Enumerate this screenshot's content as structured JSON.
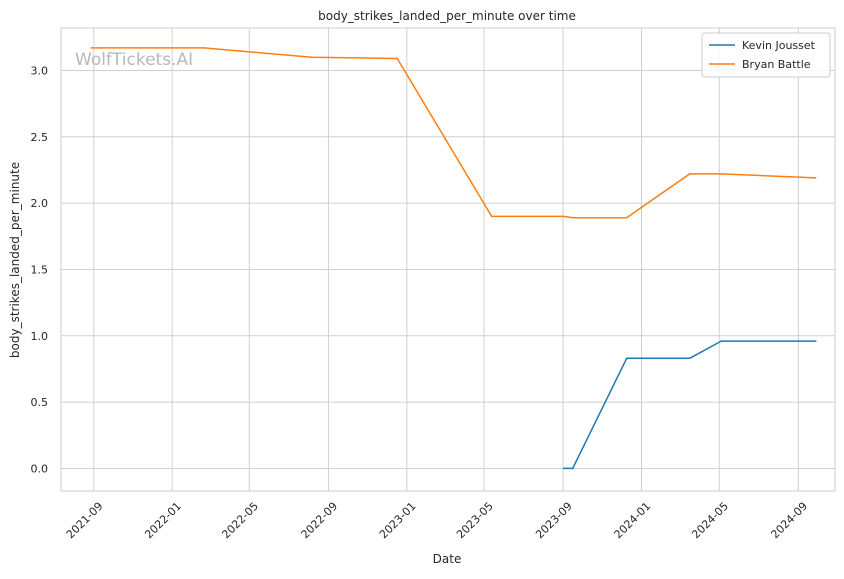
{
  "chart_data": {
    "type": "line",
    "title": "body_strikes_landed_per_minute over time",
    "xlabel": "Date",
    "ylabel": "body_strikes_landed_per_minute",
    "watermark": "WolfTickets.AI",
    "x_range": [
      "2021-07-12",
      "2024-10-28"
    ],
    "ylim": [
      -0.17,
      3.32
    ],
    "x_ticks": [
      {
        "date": "2021-09-01",
        "label": "2021-09"
      },
      {
        "date": "2022-01-01",
        "label": "2022-01"
      },
      {
        "date": "2022-05-01",
        "label": "2022-05"
      },
      {
        "date": "2022-09-01",
        "label": "2022-09"
      },
      {
        "date": "2023-01-01",
        "label": "2023-01"
      },
      {
        "date": "2023-05-01",
        "label": "2023-05"
      },
      {
        "date": "2023-09-01",
        "label": "2023-09"
      },
      {
        "date": "2024-01-01",
        "label": "2024-01"
      },
      {
        "date": "2024-05-01",
        "label": "2024-05"
      },
      {
        "date": "2024-09-01",
        "label": "2024-09"
      }
    ],
    "y_ticks": [
      {
        "value": 0.0,
        "label": "0.0"
      },
      {
        "value": 0.5,
        "label": "0.5"
      },
      {
        "value": 1.0,
        "label": "1.0"
      },
      {
        "value": 1.5,
        "label": "1.5"
      },
      {
        "value": 2.0,
        "label": "2.0"
      },
      {
        "value": 2.5,
        "label": "2.5"
      },
      {
        "value": 3.0,
        "label": "3.0"
      }
    ],
    "grid": true,
    "legend_position": "top-right",
    "series": [
      {
        "name": "Kevin Jousset",
        "color": "#1f77b4",
        "points": [
          {
            "x": "2023-09-02",
            "y": 0.0
          },
          {
            "x": "2023-09-16",
            "y": 0.0
          },
          {
            "x": "2023-12-09",
            "y": 0.83
          },
          {
            "x": "2024-03-16",
            "y": 0.83
          },
          {
            "x": "2024-05-04",
            "y": 0.96
          },
          {
            "x": "2024-09-28",
            "y": 0.96
          }
        ]
      },
      {
        "name": "Bryan Battle",
        "color": "#ff7f0e",
        "points": [
          {
            "x": "2021-08-28",
            "y": 3.17
          },
          {
            "x": "2022-02-19",
            "y": 3.17
          },
          {
            "x": "2022-08-06",
            "y": 3.1
          },
          {
            "x": "2022-12-17",
            "y": 3.09
          },
          {
            "x": "2023-05-13",
            "y": 1.9
          },
          {
            "x": "2023-09-02",
            "y": 1.9
          },
          {
            "x": "2023-09-16",
            "y": 1.89
          },
          {
            "x": "2023-12-09",
            "y": 1.89
          },
          {
            "x": "2024-03-16",
            "y": 2.22
          },
          {
            "x": "2024-05-04",
            "y": 2.22
          },
          {
            "x": "2024-09-28",
            "y": 2.19
          }
        ]
      }
    ]
  }
}
